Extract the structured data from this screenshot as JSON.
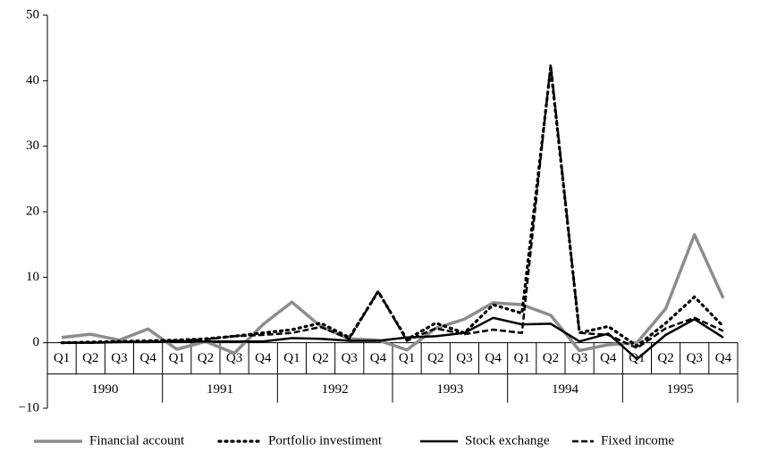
{
  "chart_data": {
    "type": "line",
    "categories": [
      "Q1",
      "Q2",
      "Q3",
      "Q4",
      "Q1",
      "Q2",
      "Q3",
      "Q4",
      "Q1",
      "Q2",
      "Q3",
      "Q4",
      "Q1",
      "Q2",
      "Q3",
      "Q4",
      "Q1",
      "Q2",
      "Q3",
      "Q4",
      "Q1",
      "Q2",
      "Q3",
      "Q4"
    ],
    "category_groups": [
      "1990",
      "1991",
      "1992",
      "1993",
      "1994",
      "1995"
    ],
    "series": [
      {
        "name": "Financial account",
        "color": "#8c8c8c",
        "style": "solid",
        "values": [
          0.8,
          1.3,
          0.4,
          2.1,
          -1.0,
          0.2,
          -1.6,
          2.8,
          6.2,
          2.5,
          0.6,
          0.4,
          -1.1,
          2.2,
          3.6,
          6.1,
          5.8,
          4.2,
          -1.2,
          -0.3,
          0.0,
          5.2,
          16.5,
          6.8
        ]
      },
      {
        "name": "Portfolio investiment",
        "color": "#000000",
        "style": "dotted",
        "values": [
          0,
          0.1,
          0.2,
          0.3,
          0.4,
          0.6,
          1.0,
          1.5,
          2.0,
          3.0,
          0.8,
          7.8,
          0.5,
          3.0,
          1.5,
          5.8,
          4.5,
          42.0,
          1.5,
          2.5,
          -0.5,
          3.0,
          7.0,
          2.5
        ]
      },
      {
        "name": "Stock exchange",
        "color": "#000000",
        "style": "solid",
        "values": [
          0,
          0,
          0.1,
          0.1,
          0.2,
          0.2,
          0.2,
          0.2,
          0.7,
          0.6,
          0.3,
          0.3,
          0.8,
          1.0,
          1.5,
          3.8,
          2.8,
          2.9,
          0.2,
          1.4,
          -2.5,
          1.2,
          3.6,
          0.8
        ]
      },
      {
        "name": "Fixed income",
        "color": "#000000",
        "style": "dashed",
        "values": [
          0,
          0,
          0.1,
          0.2,
          0.3,
          0.5,
          1.0,
          1.2,
          1.5,
          2.4,
          0.6,
          7.9,
          0.3,
          2.2,
          1.3,
          2.0,
          1.5,
          42.5,
          1.5,
          1.2,
          -0.8,
          2.2,
          3.8,
          1.8
        ]
      }
    ],
    "ylim": [
      -10,
      50
    ],
    "yticks": [
      {
        "value": -10,
        "label": "−10"
      },
      0,
      10,
      20,
      30,
      40,
      50
    ],
    "grid": false,
    "legend": "bottom"
  }
}
